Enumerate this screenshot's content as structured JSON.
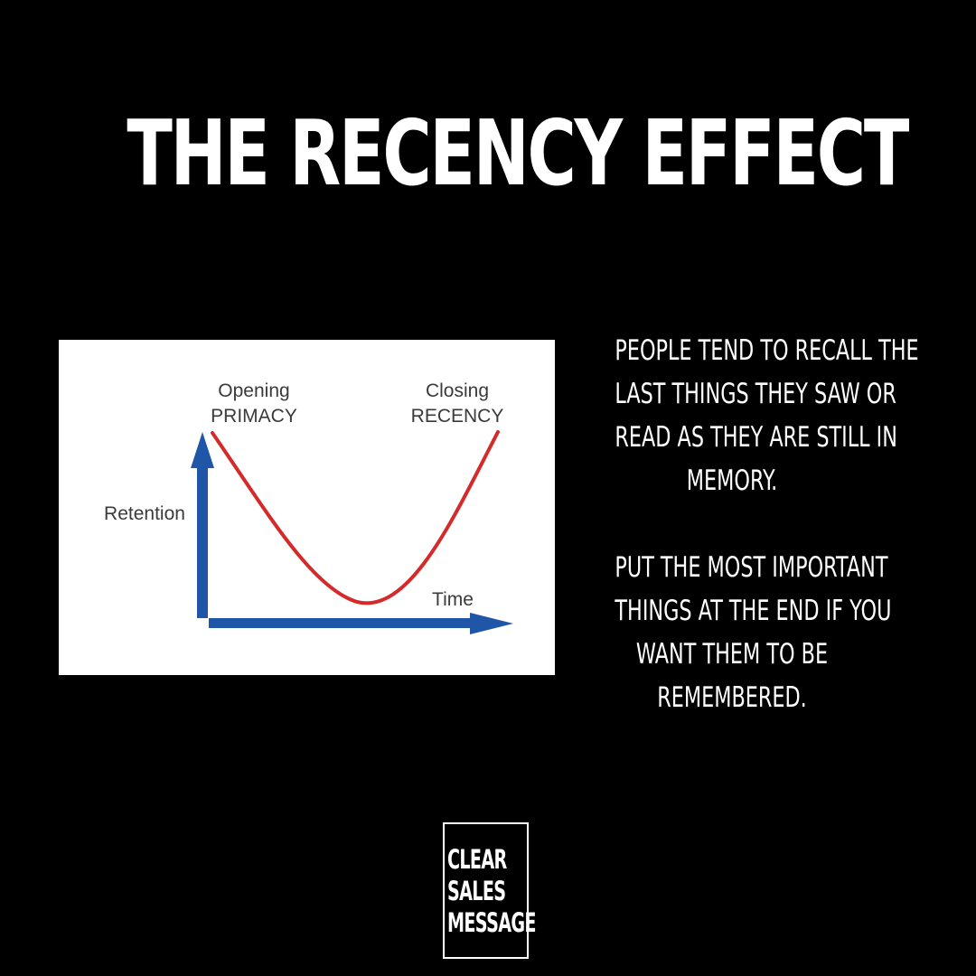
{
  "title": "THE RECENCY EFFECT",
  "diagram": {
    "opening_line1": "Opening",
    "opening_line2": "PRIMACY",
    "closing_line1": "Closing",
    "closing_line2": "RECENCY",
    "y_axis_label": "Retention",
    "x_axis_label": "Time",
    "curve_color": "#d42a2a",
    "axis_color": "#1f56a8",
    "curve_shape": "U-shaped",
    "curve_levels": {
      "start": 1.0,
      "minimum": 0.1,
      "end": 1.0,
      "minimum_position": 0.5
    }
  },
  "paragraphs": {
    "p1": [
      "PEOPLE TEND TO RECALL THE",
      "LAST THINGS THEY SAW OR",
      "READ AS THEY ARE STILL IN",
      "MEMORY."
    ],
    "p2": [
      "PUT THE MOST IMPORTANT",
      "THINGS AT THE END IF YOU",
      "WANT THEM TO BE",
      "REMEMBERED."
    ]
  },
  "logo": {
    "lines": [
      "CLEAR",
      "SALES",
      "MESSAGE"
    ]
  }
}
